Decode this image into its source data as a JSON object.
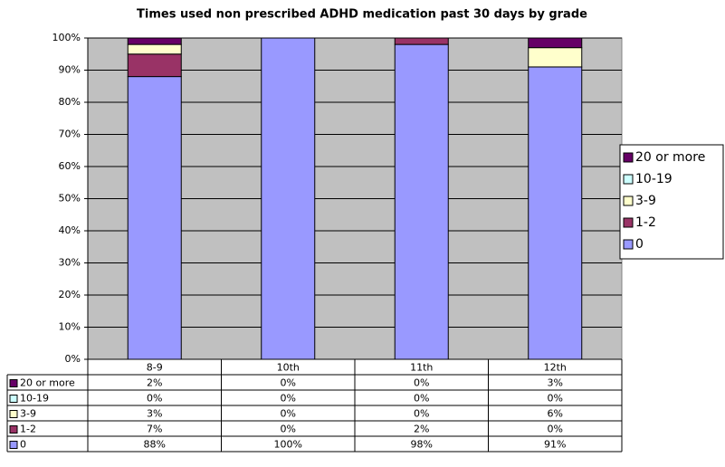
{
  "chart_data": {
    "type": "stacked_bar",
    "title": "Times used non prescribed ADHD medication past 30 days by grade",
    "categories": [
      "8-9",
      "10th",
      "11th",
      "12th"
    ],
    "series": [
      {
        "name": "0",
        "color": "#9999ff",
        "values": [
          88,
          100,
          98,
          91
        ],
        "value_labels": [
          "88%",
          "100%",
          "98%",
          "91%"
        ]
      },
      {
        "name": "1-2",
        "color": "#993366",
        "values": [
          7,
          0,
          2,
          0
        ],
        "value_labels": [
          "7%",
          "0%",
          "2%",
          "0%"
        ]
      },
      {
        "name": "3-9",
        "color": "#ffffcc",
        "values": [
          3,
          0,
          0,
          6
        ],
        "value_labels": [
          "3%",
          "0%",
          "0%",
          "6%"
        ]
      },
      {
        "name": "10-19",
        "color": "#ccffff",
        "values": [
          0,
          0,
          0,
          0
        ],
        "value_labels": [
          "0%",
          "0%",
          "0%",
          "0%"
        ]
      },
      {
        "name": "20 or more",
        "color": "#660066",
        "values": [
          2,
          0,
          0,
          3
        ],
        "value_labels": [
          "2%",
          "0%",
          "0%",
          "3%"
        ]
      }
    ],
    "ylim": [
      0,
      100
    ],
    "yticks": [
      {
        "value": 0,
        "label": "0%"
      },
      {
        "value": 10,
        "label": "10%"
      },
      {
        "value": 20,
        "label": "20%"
      },
      {
        "value": 30,
        "label": "30%"
      },
      {
        "value": 40,
        "label": "40%"
      },
      {
        "value": 50,
        "label": "50%"
      },
      {
        "value": 60,
        "label": "60%"
      },
      {
        "value": 70,
        "label": "70%"
      },
      {
        "value": 80,
        "label": "80%"
      },
      {
        "value": 90,
        "label": "90%"
      },
      {
        "value": 100,
        "label": "100%"
      }
    ],
    "grid": true,
    "legend": "right",
    "plot_background": "#c0c0c0"
  }
}
